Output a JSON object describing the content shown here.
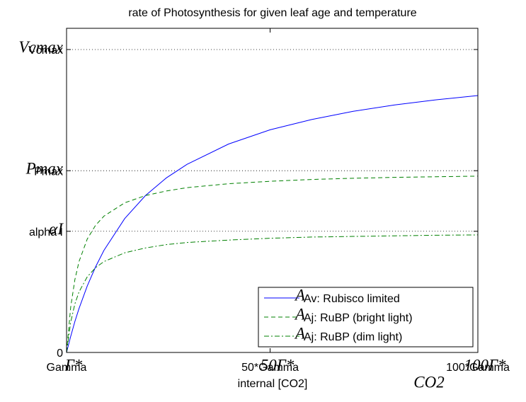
{
  "chart_data": {
    "type": "line",
    "title": "rate of Photosynthesis for given leaf age and temperature",
    "xlabel": "internal [CO2]",
    "xlabel_tex": "CO2",
    "x": [
      1,
      2,
      3,
      4,
      6,
      8,
      10,
      15,
      20,
      25,
      30,
      40,
      50,
      60,
      70,
      80,
      90,
      100
    ],
    "series": [
      {
        "name": "Av: Rubisco limited",
        "tex_name": "A",
        "color": "#0000ff",
        "dash": "solid",
        "values": [
          0,
          0.053,
          0.102,
          0.145,
          0.22,
          0.283,
          0.337,
          0.442,
          0.518,
          0.576,
          0.621,
          0.688,
          0.735,
          0.769,
          0.796,
          0.817,
          0.834,
          0.848
        ]
      },
      {
        "name": "Aj: RuBP (bright light)",
        "tex_name": "A",
        "color": "#008000",
        "dash": "dashed",
        "values": [
          0,
          0.15,
          0.24,
          0.3,
          0.375,
          0.42,
          0.45,
          0.494,
          0.518,
          0.533,
          0.544,
          0.557,
          0.565,
          0.571,
          0.575,
          0.578,
          0.58,
          0.582
        ]
      },
      {
        "name": "Aj: RuBP (dim light)",
        "tex_name": "A",
        "color": "#008000",
        "dash": "dashdot",
        "values": [
          0,
          0.1,
          0.16,
          0.2,
          0.25,
          0.28,
          0.3,
          0.329,
          0.345,
          0.356,
          0.363,
          0.371,
          0.377,
          0.381,
          0.383,
          0.385,
          0.387,
          0.388
        ]
      }
    ],
    "xlim": [
      1,
      100
    ],
    "xticks": [
      {
        "value": 1,
        "label": "Gamma",
        "tex": "Γ*"
      },
      {
        "value": 50,
        "label": "50*Gamma",
        "tex": "50Γ*"
      },
      {
        "value": 100,
        "label": "100*Gamma",
        "tex": "100Γ*"
      }
    ],
    "ylim": [
      0,
      1.07
    ],
    "yticks": [
      0,
      {
        "value": 0.4,
        "label": "alpha I",
        "tex": "αI"
      },
      {
        "value": 0.6,
        "label": "Pmax",
        "tex": "Pmax"
      },
      {
        "value": 1,
        "label": "Vcmax",
        "tex": "Vcmax"
      }
    ],
    "ygrid": true,
    "legend": "lower right"
  }
}
